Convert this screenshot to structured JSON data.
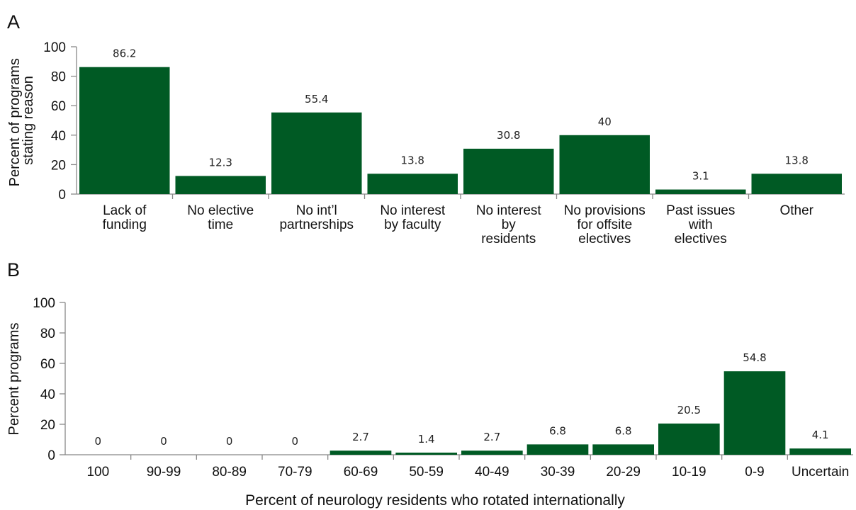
{
  "chart_data": [
    {
      "panel": "A",
      "type": "bar",
      "ylabel": [
        "Percent of programs",
        "stating reason"
      ],
      "ylim": [
        0,
        100
      ],
      "yticks": [
        "0",
        "20",
        "40",
        "60",
        "80",
        "100"
      ],
      "categories": [
        [
          "Lack of",
          "funding"
        ],
        [
          "No elective",
          "time"
        ],
        [
          "No int’l",
          "partnerships"
        ],
        [
          "No interest",
          "by faculty"
        ],
        [
          "No interest",
          "by",
          "residents"
        ],
        [
          "No provisions",
          "for offsite",
          "electives"
        ],
        [
          "Past issues",
          "with",
          "electives"
        ],
        [
          "Other"
        ]
      ],
      "values": [
        86.2,
        12.3,
        55.4,
        13.8,
        30.8,
        40,
        3.1,
        13.8
      ],
      "value_labels": [
        "86.2",
        "12.3",
        "55.4",
        "13.8",
        "30.8",
        "40",
        "3.1",
        "13.8"
      ],
      "bar_color": "#005a24",
      "grid": false
    },
    {
      "panel": "B",
      "type": "bar",
      "ylabel": [
        "Percent programs"
      ],
      "xlabel": "Percent of neurology residents who rotated internationally",
      "ylim": [
        0,
        100
      ],
      "yticks": [
        "0",
        "20",
        "40",
        "60",
        "80",
        "100"
      ],
      "categories": [
        "100",
        "90-99",
        "80-89",
        "70-79",
        "60-69",
        "50-59",
        "40-49",
        "30-39",
        "20-29",
        "10-19",
        "0-9",
        "Uncertain"
      ],
      "values": [
        0,
        0,
        0,
        0,
        2.7,
        1.4,
        2.7,
        6.8,
        6.8,
        20.5,
        54.8,
        4.1
      ],
      "value_labels": [
        "0",
        "0",
        "0",
        "0",
        "2.7",
        "1.4",
        "2.7",
        "6.8",
        "6.8",
        "20.5",
        "54.8",
        "4.1"
      ],
      "bar_color": "#005a24",
      "grid": false
    }
  ]
}
